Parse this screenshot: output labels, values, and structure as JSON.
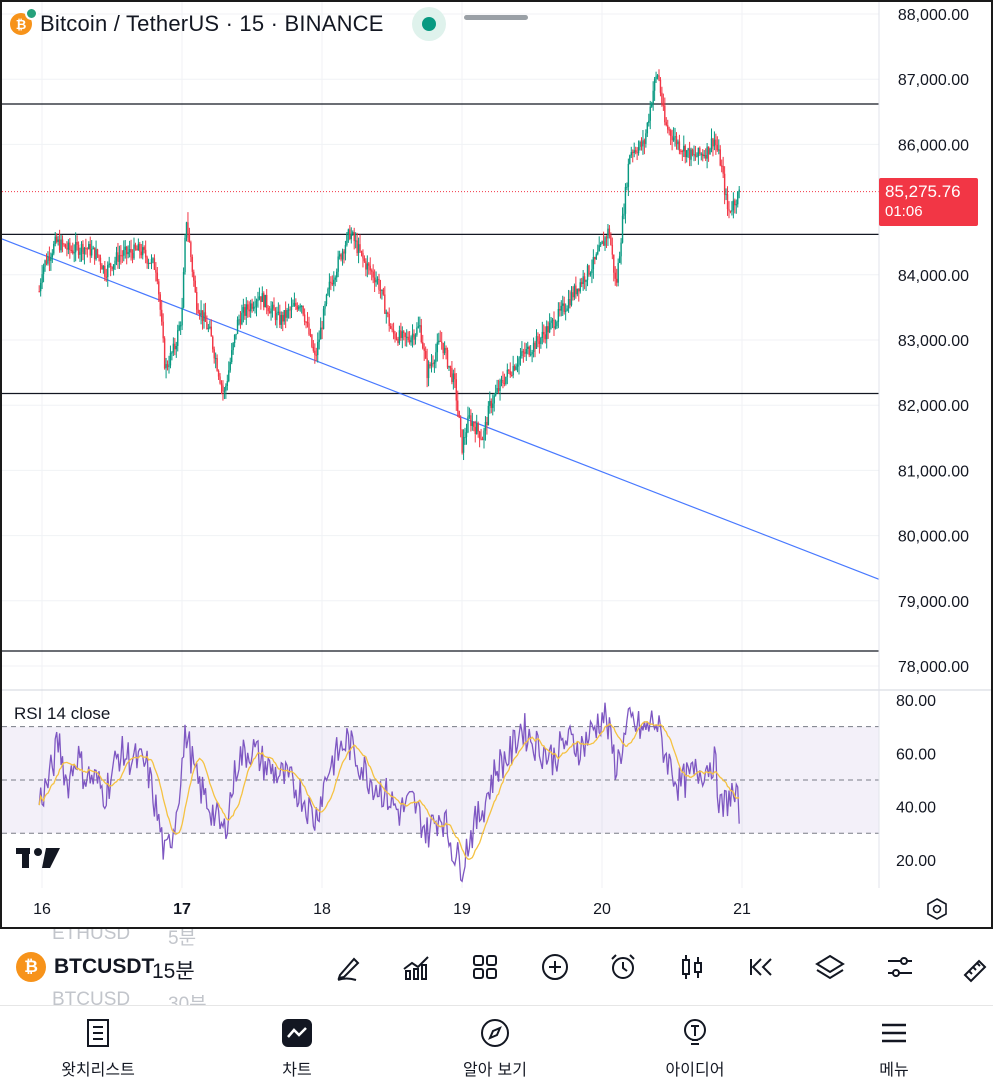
{
  "header": {
    "title": "Bitcoin / TetherUS · 15 · BINANCE",
    "coin_letter": "₿",
    "status_icon": "market-open-dot"
  },
  "price_badge": {
    "price": "85,275.76",
    "countdown": "01:06",
    "color": "#f23645"
  },
  "price_axis": [
    "88,000.00",
    "87,000.00",
    "86,000.00",
    "84,000.00",
    "83,000.00",
    "82,000.00",
    "81,000.00",
    "80,000.00",
    "79,000.00",
    "78,000.00"
  ],
  "rsi_axis": [
    "80.00",
    "60.00",
    "40.00",
    "20.00"
  ],
  "time_axis": [
    "16",
    "17",
    "18",
    "19",
    "20",
    "21"
  ],
  "rsi_label": "RSI 14 close",
  "chart_data": {
    "type": "candlestick",
    "symbol": "BTCUSDT",
    "exchange": "BINANCE",
    "interval": "15",
    "x": [
      "16",
      "17",
      "18",
      "19",
      "20",
      "21"
    ],
    "ylim": [
      77700,
      88150
    ],
    "last_price": 85275.76,
    "horizontal_lines": [
      86620,
      84620,
      82180,
      78230
    ],
    "trendline": {
      "from": {
        "x": "15 (approx)",
        "y": 84550
      },
      "to": {
        "x": "21+",
        "y": 79330
      }
    },
    "price_path": [
      [
        "15.98",
        83750
      ],
      [
        "16.00",
        84100
      ],
      [
        "16.10",
        84500
      ],
      [
        "16.20",
        84380
      ],
      [
        "16.30",
        84430
      ],
      [
        "16.40",
        84300
      ],
      [
        "16.45",
        84050
      ],
      [
        "16.55",
        84300
      ],
      [
        "16.70",
        84380
      ],
      [
        "16.82",
        84100
      ],
      [
        "16.88",
        82550
      ],
      [
        "16.95",
        82900
      ],
      [
        "17.00",
        83400
      ],
      [
        "17.03",
        84900
      ],
      [
        "17.10",
        83600
      ],
      [
        "17.20",
        83100
      ],
      [
        "17.30",
        82150
      ],
      [
        "17.40",
        83300
      ],
      [
        "17.55",
        83700
      ],
      [
        "17.70",
        83300
      ],
      [
        "17.85",
        83600
      ],
      [
        "17.95",
        82700
      ],
      [
        "18.05",
        83800
      ],
      [
        "18.15",
        84400
      ],
      [
        "18.20",
        84650
      ],
      [
        "18.30",
        84200
      ],
      [
        "18.40",
        83900
      ],
      [
        "18.50",
        83100
      ],
      [
        "18.60",
        83000
      ],
      [
        "18.70",
        83200
      ],
      [
        "18.75",
        82500
      ],
      [
        "18.85",
        83000
      ],
      [
        "18.95",
        82300
      ],
      [
        "19.00",
        81350
      ],
      [
        "19.05",
        81800
      ],
      [
        "19.15",
        81500
      ],
      [
        "19.20",
        82000
      ],
      [
        "19.30",
        82400
      ],
      [
        "19.40",
        82700
      ],
      [
        "19.55",
        83000
      ],
      [
        "19.70",
        83400
      ],
      [
        "19.85",
        83900
      ],
      [
        "19.95",
        84200
      ],
      [
        "20.05",
        84700
      ],
      [
        "20.10",
        83800
      ],
      [
        "20.15",
        84900
      ],
      [
        "20.20",
        85900
      ],
      [
        "20.30",
        86000
      ],
      [
        "20.37",
        86900
      ],
      [
        "20.40",
        87100
      ],
      [
        "20.45",
        86300
      ],
      [
        "20.55",
        86000
      ],
      [
        "20.65",
        85800
      ],
      [
        "20.75",
        85900
      ],
      [
        "20.80",
        86100
      ],
      [
        "20.85",
        85700
      ],
      [
        "20.90",
        84950
      ],
      [
        "20.95",
        85150
      ],
      [
        "20.98",
        85250
      ]
    ],
    "rsi": {
      "name": "RSI 14 close",
      "ylim": [
        10,
        82
      ],
      "bands": [
        70,
        50,
        30
      ],
      "series": [
        [
          "15.98",
          42
        ],
        [
          "16.05",
          50
        ],
        [
          "16.12",
          65
        ],
        [
          "16.18",
          48
        ],
        [
          "16.25",
          60
        ],
        [
          "16.30",
          52
        ],
        [
          "16.38",
          50
        ],
        [
          "16.45",
          45
        ],
        [
          "16.55",
          60
        ],
        [
          "16.65",
          58
        ],
        [
          "16.75",
          55
        ],
        [
          "16.85",
          30
        ],
        [
          "16.88",
          20
        ],
        [
          "16.95",
          35
        ],
        [
          "17.03",
          68
        ],
        [
          "17.10",
          50
        ],
        [
          "17.20",
          40
        ],
        [
          "17.30",
          30
        ],
        [
          "17.40",
          58
        ],
        [
          "17.50",
          62
        ],
        [
          "17.60",
          55
        ],
        [
          "17.75",
          50
        ],
        [
          "17.85",
          45
        ],
        [
          "17.95",
          35
        ],
        [
          "18.05",
          55
        ],
        [
          "18.18",
          65
        ],
        [
          "18.25",
          58
        ],
        [
          "18.35",
          50
        ],
        [
          "18.45",
          45
        ],
        [
          "18.55",
          38
        ],
        [
          "18.65",
          42
        ],
        [
          "18.75",
          30
        ],
        [
          "18.85",
          38
        ],
        [
          "18.95",
          22
        ],
        [
          "19.00",
          18
        ],
        [
          "19.05",
          28
        ],
        [
          "19.15",
          40
        ],
        [
          "19.25",
          55
        ],
        [
          "19.35",
          60
        ],
        [
          "19.42",
          70
        ],
        [
          "19.55",
          62
        ],
        [
          "19.65",
          58
        ],
        [
          "19.75",
          65
        ],
        [
          "19.85",
          62
        ],
        [
          "19.95",
          70
        ],
        [
          "20.02",
          75
        ],
        [
          "20.10",
          55
        ],
        [
          "20.20",
          72
        ],
        [
          "20.30",
          68
        ],
        [
          "20.38",
          73
        ],
        [
          "20.45",
          60
        ],
        [
          "20.55",
          48
        ],
        [
          "20.65",
          52
        ],
        [
          "20.75",
          55
        ],
        [
          "20.80",
          58
        ],
        [
          "20.85",
          38
        ],
        [
          "20.92",
          45
        ],
        [
          "20.98",
          40
        ]
      ]
    }
  },
  "toolbar": {
    "faded_top_symbol": "ETHUSD",
    "faded_top_tf": "5분",
    "symbol": "BTCUSDT",
    "timeframe": "15분",
    "faded_bottom_symbol": "BTCUSD",
    "faded_bottom_tf": "30분",
    "tools": [
      "draw-pen-icon",
      "indicators-icon",
      "layouts-grid-icon",
      "add-circle-icon",
      "alarm-clock-icon",
      "candles-style-icon",
      "replay-icon",
      "layers-icon",
      "settings-sliders-icon",
      "ruler-icon"
    ]
  },
  "nav": {
    "items": [
      {
        "label": "왓치리스트",
        "icon": "watchlist-icon"
      },
      {
        "label": "차트",
        "icon": "chart-icon"
      },
      {
        "label": "알아 보기",
        "icon": "explore-compass-icon"
      },
      {
        "label": "아이디어",
        "icon": "ideas-bulb-icon"
      },
      {
        "label": "메뉴",
        "icon": "menu-icon"
      }
    ]
  }
}
